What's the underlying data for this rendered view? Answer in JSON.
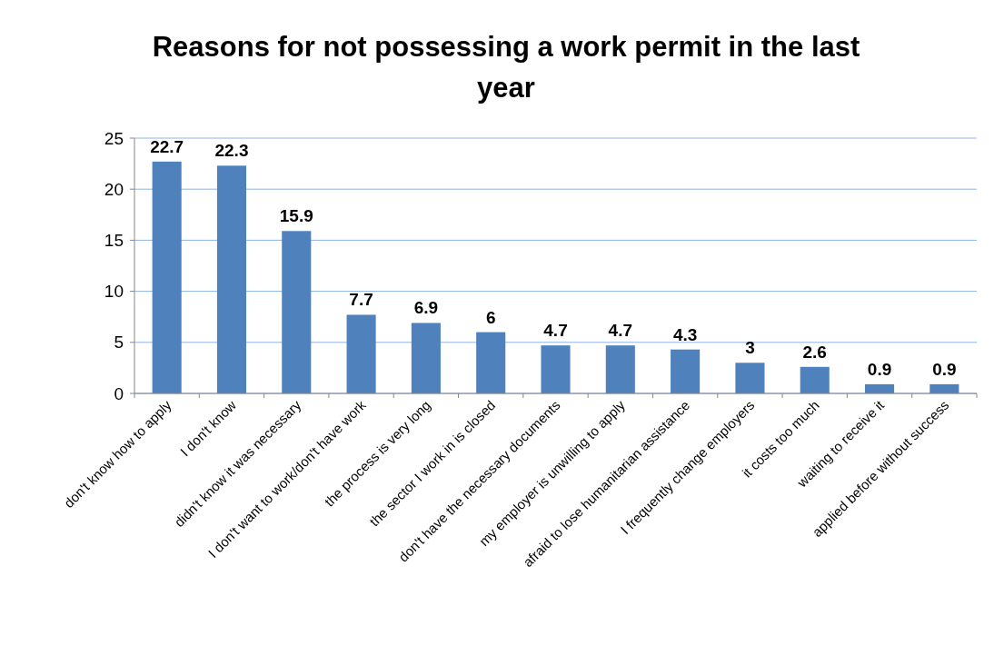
{
  "chart_data": {
    "type": "bar",
    "title": "Reasons for not possessing a work permit in the last year",
    "categories": [
      "don't know how to apply",
      "I don't know",
      "didn't know it was necessary",
      "I don't want to work/don't have work",
      "the process is very long",
      "the sector I work in is closed",
      "don't have the necessary documents",
      "my employer is unwilling to apply",
      "afraid to lose humanitarian assistance",
      "I frequently change employers",
      "it costs too much",
      "waiting to receive it",
      "applied before without success"
    ],
    "values": [
      22.7,
      22.3,
      15.9,
      7.7,
      6.9,
      6,
      4.7,
      4.7,
      4.3,
      3,
      2.6,
      0.9,
      0.9
    ],
    "color": "#4f81bd",
    "ylim": [
      0,
      25
    ],
    "yticks": [
      0,
      5,
      10,
      15,
      20,
      25
    ],
    "grid": "y",
    "data_labels": true
  }
}
